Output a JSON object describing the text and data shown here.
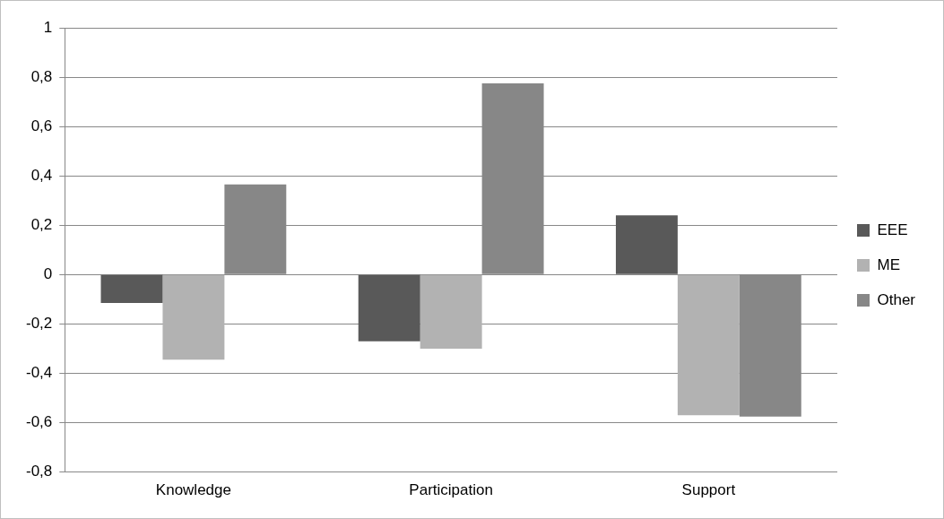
{
  "chart_data": {
    "type": "bar",
    "categories": [
      "Knowledge",
      "Participation",
      "Support"
    ],
    "series": [
      {
        "name": "EEE",
        "color": "#595959",
        "values": [
          -0.115,
          -0.27,
          0.24
        ]
      },
      {
        "name": "ME",
        "color": "#b2b2b2",
        "values": [
          -0.345,
          -0.3,
          -0.57
        ]
      },
      {
        "name": "Other",
        "color": "#878787",
        "values": [
          0.365,
          0.775,
          -0.575
        ]
      }
    ],
    "ylim": [
      -0.8,
      1
    ],
    "yticks": [
      {
        "value": -0.8,
        "label": "-0,8"
      },
      {
        "value": -0.6,
        "label": "-0,6"
      },
      {
        "value": -0.4,
        "label": "-0,4"
      },
      {
        "value": -0.2,
        "label": "-0,2"
      },
      0,
      {
        "value": 0.2,
        "label": "0,2"
      },
      {
        "value": 0.4,
        "label": "0,4"
      },
      {
        "value": 0.6,
        "label": "0,6"
      },
      {
        "value": 0.8,
        "label": "0,8"
      },
      1
    ],
    "grid": "y",
    "legend": "right"
  }
}
